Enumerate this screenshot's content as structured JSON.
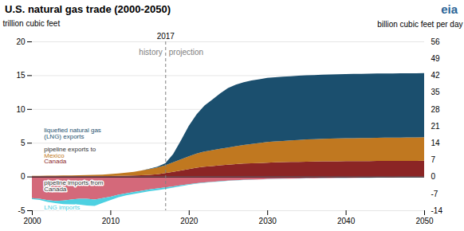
{
  "chart_data": {
    "type": "area",
    "title": "U.S. natural gas trade (2000-2050)",
    "ylabel": "trillion cubic feet",
    "y2label": "billion cubic feet per day",
    "stacked": true,
    "grid": true,
    "x": [
      2000,
      2001,
      2002,
      2003,
      2004,
      2005,
      2006,
      2007,
      2008,
      2009,
      2010,
      2011,
      2012,
      2013,
      2014,
      2015,
      2016,
      2017,
      2018,
      2019,
      2020,
      2021,
      2022,
      2023,
      2024,
      2025,
      2026,
      2027,
      2028,
      2029,
      2030,
      2031,
      2032,
      2033,
      2034,
      2035,
      2036,
      2037,
      2038,
      2039,
      2040,
      2041,
      2042,
      2043,
      2044,
      2045,
      2046,
      2047,
      2048,
      2049,
      2050
    ],
    "xlim": [
      2000,
      2050
    ],
    "xticks": [
      2000,
      2010,
      2020,
      2030,
      2040,
      2050
    ],
    "ylim": [
      -5,
      20
    ],
    "yticks": [
      -5,
      0,
      5,
      10,
      15,
      20
    ],
    "y2lim": [
      -14,
      56
    ],
    "y2ticks": [
      -14,
      -7,
      0,
      7,
      14,
      21,
      28,
      35,
      42,
      49,
      56
    ],
    "series": [
      {
        "color": "#8b2525",
        "values": [
          0.05,
          0.05,
          0.05,
          0.05,
          0.05,
          0.05,
          0.05,
          0.05,
          0.05,
          0.05,
          0.08,
          0.1,
          0.12,
          0.15,
          0.2,
          0.25,
          0.35,
          0.5,
          0.7,
          0.9,
          1.1,
          1.3,
          1.45,
          1.55,
          1.65,
          1.75,
          1.85,
          1.92,
          1.97,
          2.0,
          2.05,
          2.1,
          2.12,
          2.15,
          2.17,
          2.2,
          2.22,
          2.24,
          2.25,
          2.26,
          2.27,
          2.28,
          2.28,
          2.29,
          2.3,
          2.3,
          2.31,
          2.31,
          2.32,
          2.32,
          2.33
        ]
      },
      {
        "color": "#c07820",
        "values": [
          0.05,
          0.06,
          0.07,
          0.08,
          0.1,
          0.12,
          0.15,
          0.18,
          0.2,
          0.22,
          0.28,
          0.35,
          0.45,
          0.55,
          0.7,
          0.85,
          1.0,
          1.15,
          1.4,
          1.65,
          1.9,
          2.1,
          2.25,
          2.35,
          2.45,
          2.55,
          2.65,
          2.75,
          2.85,
          2.95,
          3.05,
          3.1,
          3.15,
          3.2,
          3.25,
          3.3,
          3.3,
          3.35,
          3.35,
          3.38,
          3.4,
          3.4,
          3.42,
          3.42,
          3.44,
          3.45,
          3.45,
          3.46,
          3.47,
          3.47,
          3.48
        ]
      },
      {
        "color": "#1b4f6e",
        "values": [
          0.0,
          0.0,
          0.0,
          0.0,
          0.0,
          0.0,
          0.0,
          0.0,
          0.0,
          0.0,
          0.0,
          0.0,
          0.0,
          0.0,
          0.0,
          0.05,
          0.1,
          0.3,
          1.2,
          2.8,
          4.5,
          5.8,
          6.8,
          7.5,
          8.2,
          8.8,
          9.1,
          9.3,
          9.4,
          9.45,
          9.5,
          9.5,
          9.5,
          9.5,
          9.5,
          9.5,
          9.5,
          9.5,
          9.5,
          9.5,
          9.5,
          9.5,
          9.5,
          9.5,
          9.5,
          9.5,
          9.5,
          9.5,
          9.5,
          9.5,
          9.5
        ]
      },
      {
        "color": "#d4697a",
        "values": [
          -3.2,
          -3.3,
          -3.5,
          -3.6,
          -3.55,
          -3.4,
          -3.3,
          -3.3,
          -3.4,
          -3.2,
          -3.0,
          -2.7,
          -2.5,
          -2.3,
          -2.1,
          -1.9,
          -1.75,
          -1.6,
          -1.45,
          -1.3,
          -1.15,
          -1.0,
          -0.88,
          -0.78,
          -0.7,
          -0.62,
          -0.55,
          -0.5,
          -0.46,
          -0.42,
          -0.38,
          -0.35,
          -0.32,
          -0.3,
          -0.28,
          -0.26,
          -0.24,
          -0.22,
          -0.21,
          -0.2,
          -0.19,
          -0.18,
          -0.17,
          -0.16,
          -0.15,
          -0.14,
          -0.13,
          -0.12,
          -0.12,
          -0.11,
          -0.1
        ]
      },
      {
        "color": "#4dd0e1",
        "values": [
          -0.15,
          -0.18,
          -0.25,
          -0.35,
          -0.55,
          -0.72,
          -0.85,
          -1.0,
          -0.95,
          -0.7,
          -0.5,
          -0.38,
          -0.3,
          -0.28,
          -0.28,
          -0.28,
          -0.28,
          -0.25,
          -0.18,
          -0.12,
          -0.08,
          -0.06,
          -0.05,
          -0.04,
          -0.04,
          -0.03,
          -0.03,
          -0.03,
          -0.03,
          -0.02,
          -0.02,
          -0.02,
          -0.02,
          -0.02,
          -0.02,
          -0.02,
          -0.02,
          -0.02,
          -0.02,
          -0.02,
          -0.02,
          -0.02,
          -0.02,
          -0.02,
          -0.02,
          -0.02,
          -0.02,
          -0.02,
          -0.02,
          -0.02,
          -0.02
        ]
      }
    ],
    "divider": {
      "x": 2017,
      "label": "2017",
      "left_label": "history",
      "right_label": "projection"
    },
    "annotations": [
      {
        "text": "liquefied natural gas\n(LNG) exports",
        "x": 2001.5,
        "y": 6.5,
        "color": "#1b4f6e"
      },
      {
        "text": "pipeline exports to",
        "x": 2001.5,
        "y": 3.8,
        "color": "#333333"
      },
      {
        "text": "Mexico",
        "x": 2001.5,
        "y": 3.2,
        "color": "#c07820"
      },
      {
        "text": "Canada",
        "x": 2001.5,
        "y": 2.65,
        "color": "#8b2525"
      },
      {
        "text": "pipeline imports from\nCanada",
        "x": 2001.5,
        "y": -1.3,
        "color": "#333333"
      },
      {
        "text": "LNG imports",
        "x": 2001.5,
        "y": -4.55,
        "color": "#4dd0e1"
      }
    ],
    "logo": {
      "text": "eia",
      "color": "#2a6496"
    }
  }
}
